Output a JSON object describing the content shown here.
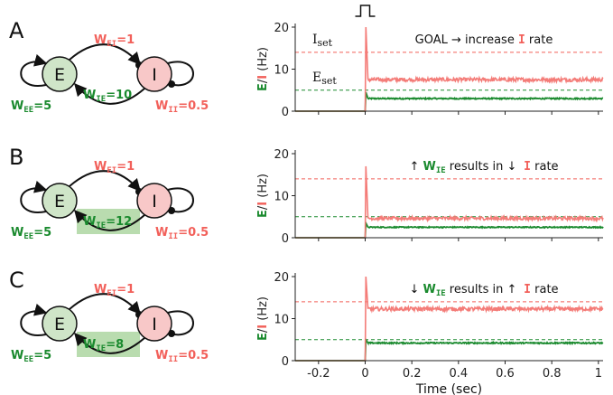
{
  "colors": {
    "excitatory": "#1a8a2e",
    "inhibitory": "#f2605a",
    "inhibitory_trace": "#f47c78",
    "e_node_fill": "#cfe5c8",
    "i_node_fill": "#f8c8c8",
    "highlight": "#b9dcaf",
    "axis": "#222222"
  },
  "shared": {
    "node_e_label": "E",
    "node_i_label": "I",
    "w_ei": "1",
    "w_ee": "5",
    "w_ii": "0.5",
    "w_symbol": "W",
    "sub_ei": "EI",
    "sub_ee": "EE",
    "sub_ii": "II",
    "sub_ie": "IE",
    "eq": "="
  },
  "axis_labels": {
    "ylabel_e": "E",
    "ylabel_slash": "/",
    "ylabel_i": "I",
    "ylabel_unit": " (Hz)",
    "xlabel": "Time (sec)",
    "iset_main": "I",
    "iset_sub": "set",
    "eset_main": "E",
    "eset_sub": "set"
  },
  "panels": [
    {
      "label": "A",
      "w_ie": "10",
      "w_ie_highlight": false,
      "annotation": {
        "prefix": "GOAL → increase ",
        "wie": "",
        "mid": "",
        "i_letter": "I",
        "suffix": " rate"
      }
    },
    {
      "label": "B",
      "w_ie": "12",
      "w_ie_highlight": true,
      "annotation": {
        "prefix": "↑ ",
        "wie": "W",
        "wie_sub": "IE",
        "mid": " results in ↓",
        "i_letter": "I",
        "suffix": " rate"
      }
    },
    {
      "label": "C",
      "w_ie": "8",
      "w_ie_highlight": true,
      "annotation": {
        "prefix": "↓ ",
        "wie": "W",
        "wie_sub": "IE",
        "mid": " results in ↑",
        "i_letter": "I",
        "suffix": " rate"
      }
    }
  ],
  "chart_data": [
    {
      "type": "line",
      "panel": "A",
      "xlim": [
        -0.3,
        1.02
      ],
      "ylim": [
        0,
        20
      ],
      "yticks": [
        0,
        10,
        20
      ],
      "xticks": [
        -0.2,
        0,
        0.2,
        0.4,
        0.6,
        0.8,
        1
      ],
      "xlabel": "Time (sec)",
      "ylabel": "E/I (Hz)",
      "set_points": {
        "I_set": 14,
        "E_set": 5
      },
      "stimulus_pulse": true,
      "series": [
        {
          "name": "E",
          "baseline": 0,
          "peak": 4.5,
          "steady": 3.0,
          "noise": 0.15
        },
        {
          "name": "I",
          "baseline": 0,
          "peak": 20,
          "steady": 7.5,
          "noise": 0.45
        }
      ]
    },
    {
      "type": "line",
      "panel": "B",
      "xlim": [
        -0.3,
        1.02
      ],
      "ylim": [
        0,
        20
      ],
      "yticks": [
        0,
        10,
        20
      ],
      "xticks": [
        -0.2,
        0,
        0.2,
        0.4,
        0.6,
        0.8,
        1
      ],
      "xlabel": "Time (sec)",
      "ylabel": "E/I (Hz)",
      "set_points": {
        "I_set": 14,
        "E_set": 5
      },
      "series": [
        {
          "name": "E",
          "baseline": 0,
          "peak": 3.5,
          "steady": 2.5,
          "noise": 0.12
        },
        {
          "name": "I",
          "baseline": 0,
          "peak": 17,
          "steady": 4.6,
          "noise": 0.4
        }
      ]
    },
    {
      "type": "line",
      "panel": "C",
      "xlim": [
        -0.3,
        1.02
      ],
      "ylim": [
        0,
        20
      ],
      "yticks": [
        0,
        10,
        20
      ],
      "xticks": [
        -0.2,
        0,
        0.2,
        0.4,
        0.6,
        0.8,
        1
      ],
      "xticklabels": [
        "-0.2",
        "0",
        "0.2",
        "0.4",
        "0.6",
        "0.8",
        "1"
      ],
      "xlabel": "Time (sec)",
      "ylabel": "E/I (Hz)",
      "set_points": {
        "I_set": 14,
        "E_set": 5
      },
      "series": [
        {
          "name": "E",
          "baseline": 0,
          "peak": 5.0,
          "steady": 4.2,
          "noise": 0.15
        },
        {
          "name": "I",
          "baseline": 0,
          "peak": 20,
          "steady": 12.3,
          "noise": 0.45
        }
      ]
    }
  ]
}
